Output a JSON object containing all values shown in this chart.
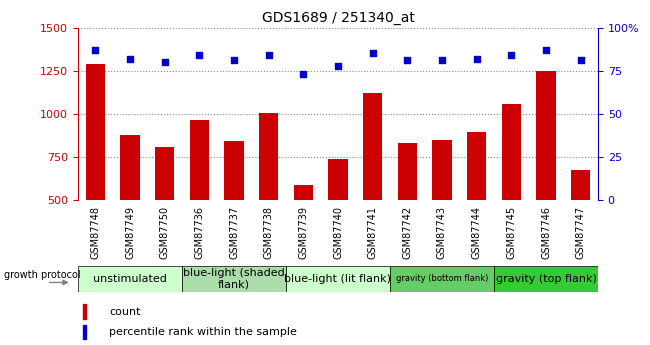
{
  "title": "GDS1689 / 251340_at",
  "samples": [
    "GSM87748",
    "GSM87749",
    "GSM87750",
    "GSM87736",
    "GSM87737",
    "GSM87738",
    "GSM87739",
    "GSM87740",
    "GSM87741",
    "GSM87742",
    "GSM87743",
    "GSM87744",
    "GSM87745",
    "GSM87746",
    "GSM87747"
  ],
  "counts": [
    1290,
    880,
    810,
    965,
    840,
    1005,
    590,
    740,
    1120,
    830,
    850,
    895,
    1055,
    1250,
    675
  ],
  "percentiles": [
    87,
    82,
    80,
    84,
    81,
    84,
    73,
    78,
    85,
    81,
    81,
    82,
    84,
    87,
    81
  ],
  "ylim_left": [
    500,
    1500
  ],
  "ylim_right": [
    0,
    100
  ],
  "yticks_left": [
    500,
    750,
    1000,
    1250,
    1500
  ],
  "yticks_right": [
    0,
    25,
    50,
    75,
    100
  ],
  "bar_color": "#cc0000",
  "dot_color": "#0000cc",
  "group_defs": [
    {
      "label": "unstimulated",
      "start": 0,
      "end": 2,
      "color": "#ccffcc",
      "fontsize": 8
    },
    {
      "label": "blue-light (shaded\nflank)",
      "start": 3,
      "end": 5,
      "color": "#aaddaa",
      "fontsize": 8
    },
    {
      "label": "blue-light (lit flank)",
      "start": 6,
      "end": 8,
      "color": "#ccffcc",
      "fontsize": 8
    },
    {
      "label": "gravity (bottom flank)",
      "start": 9,
      "end": 11,
      "color": "#66cc66",
      "fontsize": 6
    },
    {
      "label": "gravity (top flank)",
      "start": 12,
      "end": 14,
      "color": "#33cc33",
      "fontsize": 8
    }
  ],
  "left_axis_color": "#cc0000",
  "right_axis_color": "#0000cc",
  "grid_color": "#888888",
  "sample_bg_color": "#cccccc",
  "legend_count_color": "#cc0000",
  "legend_dot_color": "#0000cc"
}
